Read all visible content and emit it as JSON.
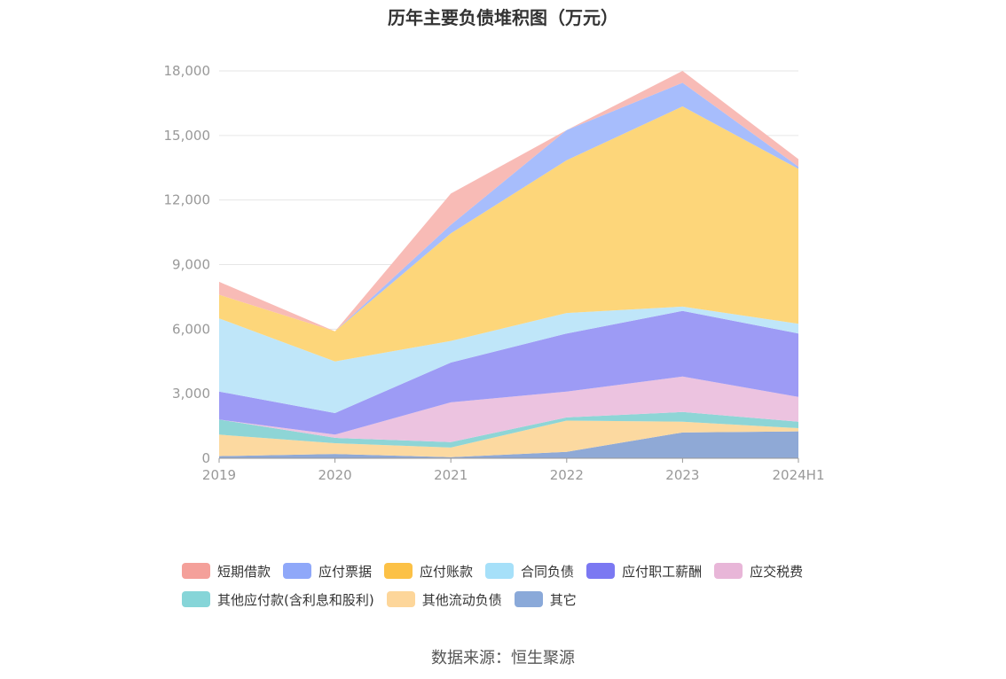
{
  "chart_data": {
    "type": "area",
    "stacked": true,
    "title": "历年主要负债堆积图（万元）",
    "x": [
      "2019",
      "2020",
      "2021",
      "2022",
      "2023",
      "2024H1"
    ],
    "ylim": [
      0,
      18000
    ],
    "yticks": [
      "0",
      "3,000",
      "6,000",
      "9,000",
      "12,000",
      "15,000",
      "18,000"
    ],
    "grid": true,
    "legend_position": "bottom",
    "series": [
      {
        "name": "其它",
        "color": "#8fa9d6",
        "values": [
          100,
          200,
          50,
          300,
          1200,
          1250
        ]
      },
      {
        "name": "其他流动负债",
        "color": "#fcd9a0",
        "values": [
          1000,
          500,
          450,
          1450,
          500,
          150
        ]
      },
      {
        "name": "其他应付款(含利息和股利)",
        "color": "#8ed5d6",
        "values": [
          700,
          250,
          250,
          150,
          450,
          300
        ]
      },
      {
        "name": "应交税费",
        "color": "#ecc3e0",
        "values": [
          0,
          150,
          1850,
          1200,
          1650,
          1150
        ]
      },
      {
        "name": "应付职工薪酬",
        "color": "#9d9bf5",
        "values": [
          1300,
          1000,
          1850,
          2700,
          3050,
          2950
        ]
      },
      {
        "name": "合同负债",
        "color": "#bfe6f9",
        "values": [
          3400,
          2400,
          1000,
          950,
          200,
          450
        ]
      },
      {
        "name": "应付账款",
        "color": "#fdd67a",
        "values": [
          1100,
          1400,
          5000,
          7100,
          9300,
          7200
        ]
      },
      {
        "name": "应付票据",
        "color": "#a7bdfc",
        "values": [
          0,
          0,
          400,
          1400,
          1100,
          100
        ]
      },
      {
        "name": "短期借款",
        "color": "#f8bbb6",
        "values": [
          600,
          0,
          1450,
          0,
          550,
          350
        ]
      }
    ]
  },
  "legend": [
    {
      "label": "短期借款",
      "color": "#f4a09a"
    },
    {
      "label": "应付票据",
      "color": "#8fa8f9"
    },
    {
      "label": "应付账款",
      "color": "#fcc146"
    },
    {
      "label": "合同负债",
      "color": "#a6e0f9"
    },
    {
      "label": "应付职工薪酬",
      "color": "#7b78f2"
    },
    {
      "label": "应交税费",
      "color": "#e8b6d8"
    },
    {
      "label": "其他应付款(含利息和股利)",
      "color": "#86d5d8"
    },
    {
      "label": "其他流动负债",
      "color": "#fdd69a"
    },
    {
      "label": "其它",
      "color": "#8aa9d9"
    }
  ],
  "source": "数据来源：恒生聚源"
}
